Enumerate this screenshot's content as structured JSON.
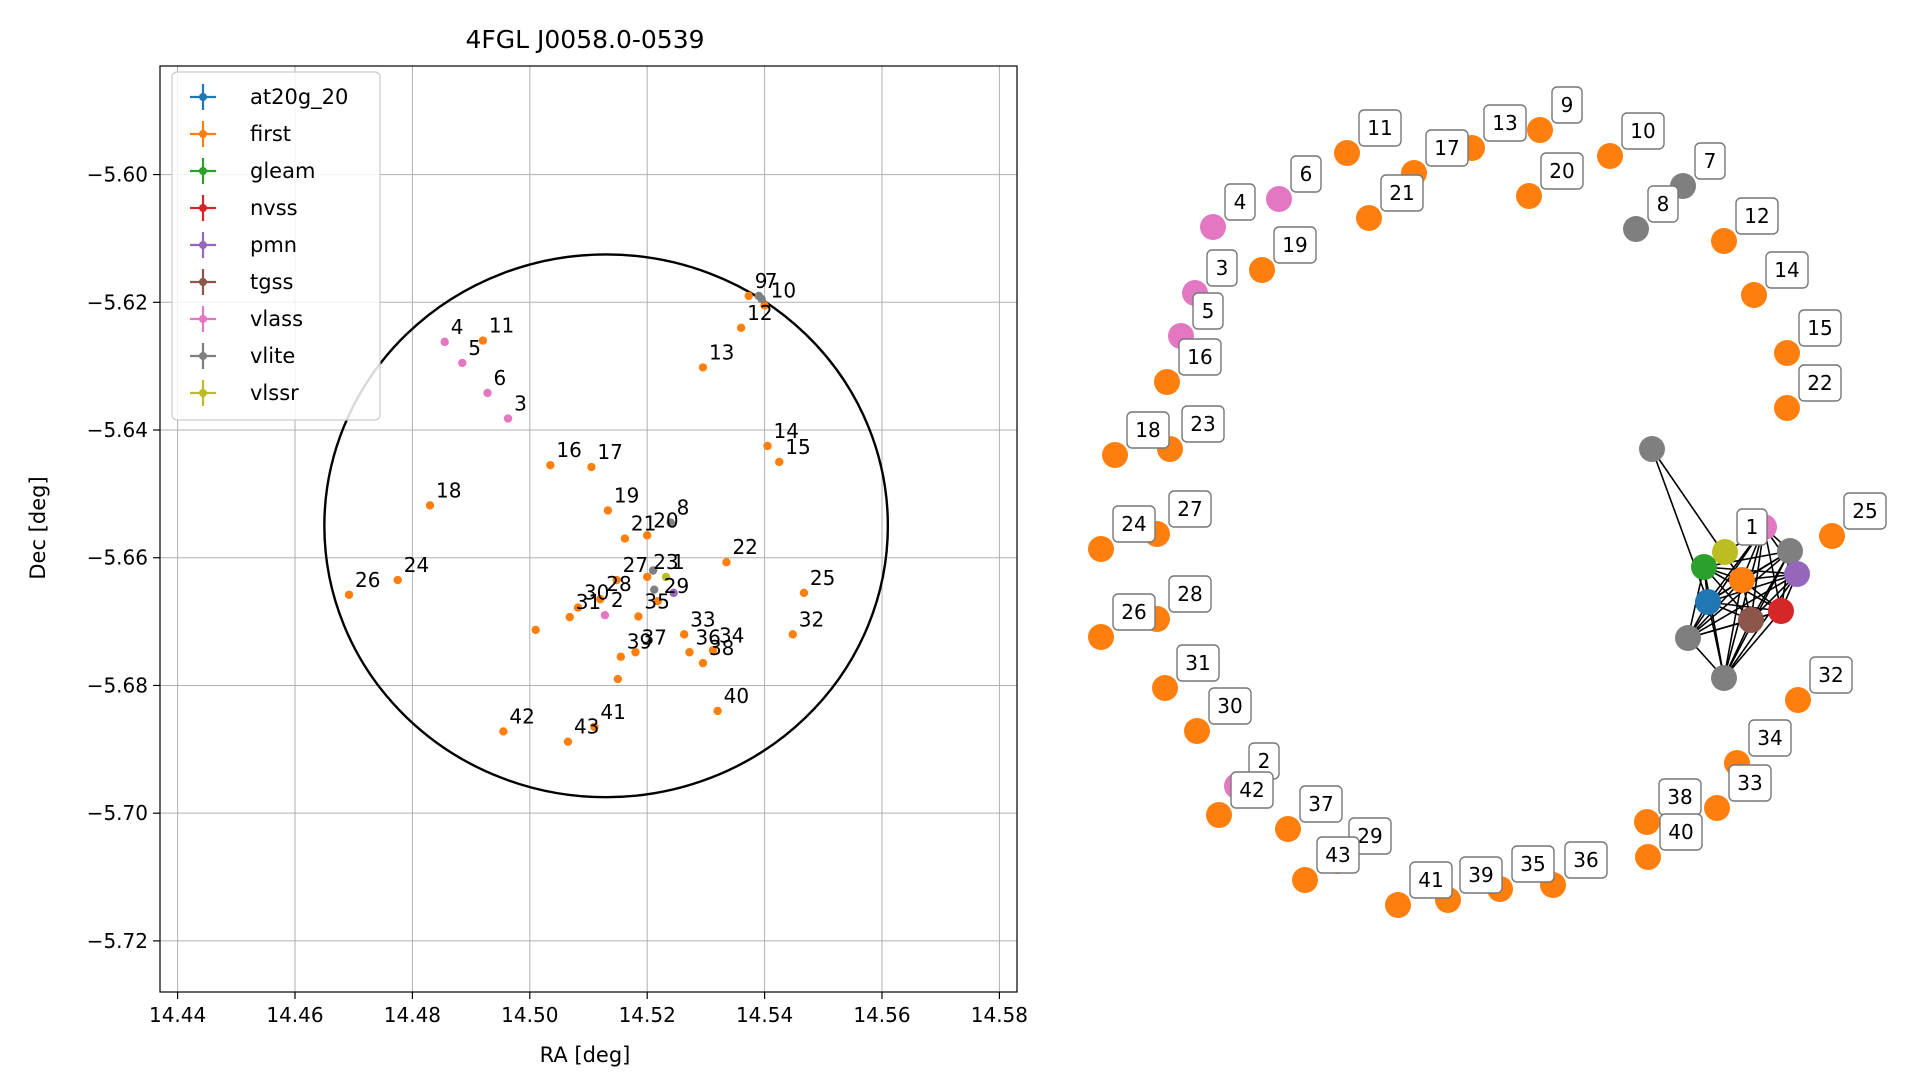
{
  "chart_data": [
    {
      "type": "scatter",
      "title": "4FGL J0058.0-0539",
      "xlabel": "RA [deg]",
      "ylabel": "Dec [deg]",
      "xlim": [
        14.437,
        14.583
      ],
      "ylim": [
        -5.728,
        -5.583
      ],
      "xticks": [
        14.44,
        14.46,
        14.48,
        14.5,
        14.52,
        14.54,
        14.56,
        14.58
      ],
      "xtick_labels": [
        "14.44",
        "14.46",
        "14.48",
        "14.50",
        "14.52",
        "14.54",
        "14.56",
        "14.58"
      ],
      "yticks": [
        -5.6,
        -5.62,
        -5.64,
        -5.66,
        -5.68,
        -5.7,
        -5.72
      ],
      "ytick_labels": [
        "−5.60",
        "−5.62",
        "−5.64",
        "−5.66",
        "−5.68",
        "−5.70",
        "−5.72"
      ],
      "grid": true,
      "legend_position": "top-left",
      "legend": [
        "at20g_20",
        "first",
        "gleam",
        "nvss",
        "pmn",
        "tgss",
        "vlass",
        "vlite",
        "vlssr"
      ],
      "colors": {
        "at20g_20": "#1f77b4",
        "first": "#ff7f0e",
        "gleam": "#2ca02c",
        "nvss": "#d62728",
        "pmn": "#9467bd",
        "tgss": "#8c564b",
        "vlass": "#e377c2",
        "vlite": "#7f7f7f",
        "vlssr": "#bcbd22"
      },
      "circle": {
        "center_ra": 14.513,
        "center_dec": -5.655,
        "radius_ra": 0.048,
        "radius_dec": 0.0425
      },
      "points": [
        {
          "id": "1",
          "survey": "vlssr",
          "ra": 14.5232,
          "dec": -5.663
        },
        {
          "id": "2",
          "survey": "vlass",
          "ra": 14.5128,
          "dec": -5.669
        },
        {
          "id": "3",
          "survey": "vlass",
          "ra": 14.4963,
          "dec": -5.6382
        },
        {
          "id": "4",
          "survey": "vlass",
          "ra": 14.4855,
          "dec": -5.6262
        },
        {
          "id": "5",
          "survey": "vlass",
          "ra": 14.4885,
          "dec": -5.6295
        },
        {
          "id": "6",
          "survey": "vlass",
          "ra": 14.4928,
          "dec": -5.6342
        },
        {
          "id": "7",
          "survey": "vlite",
          "ra": 14.539,
          "dec": -5.619
        },
        {
          "id": "8",
          "survey": "vlite",
          "ra": 14.524,
          "dec": -5.6545
        },
        {
          "id": "9",
          "survey": "first",
          "ra": 14.5373,
          "dec": -5.619
        },
        {
          "id": "10",
          "survey": "first",
          "ra": 14.54,
          "dec": -5.6205
        },
        {
          "id": "11",
          "survey": "first",
          "ra": 14.492,
          "dec": -5.626
        },
        {
          "id": "12",
          "survey": "first",
          "ra": 14.536,
          "dec": -5.624
        },
        {
          "id": "13",
          "survey": "first",
          "ra": 14.5295,
          "dec": -5.6302
        },
        {
          "id": "14",
          "survey": "first",
          "ra": 14.5405,
          "dec": -5.6425
        },
        {
          "id": "15",
          "survey": "first",
          "ra": 14.5425,
          "dec": -5.645
        },
        {
          "id": "16",
          "survey": "first",
          "ra": 14.5035,
          "dec": -5.6455
        },
        {
          "id": "17",
          "survey": "first",
          "ra": 14.5105,
          "dec": -5.6458
        },
        {
          "id": "18",
          "survey": "first",
          "ra": 14.483,
          "dec": -5.6518
        },
        {
          "id": "19",
          "survey": "first",
          "ra": 14.5133,
          "dec": -5.6526
        },
        {
          "id": "20",
          "survey": "first",
          "ra": 14.52,
          "dec": -5.6565
        },
        {
          "id": "21",
          "survey": "first",
          "ra": 14.5162,
          "dec": -5.657
        },
        {
          "id": "22",
          "survey": "first",
          "ra": 14.5335,
          "dec": -5.6607
        },
        {
          "id": "23",
          "survey": "first",
          "ra": 14.52,
          "dec": -5.663
        },
        {
          "id": "24",
          "survey": "first",
          "ra": 14.4775,
          "dec": -5.6635
        },
        {
          "id": "25",
          "survey": "first",
          "ra": 14.5467,
          "dec": -5.6655
        },
        {
          "id": "26",
          "survey": "first",
          "ra": 14.4692,
          "dec": -5.6658
        },
        {
          "id": "27",
          "survey": "first",
          "ra": 14.5148,
          "dec": -5.6635
        },
        {
          "id": "28",
          "survey": "first",
          "ra": 14.512,
          "dec": -5.6665
        },
        {
          "id": "29",
          "survey": "first",
          "ra": 14.5218,
          "dec": -5.6668
        },
        {
          "id": "30",
          "survey": "first",
          "ra": 14.5082,
          "dec": -5.6678
        },
        {
          "id": "31",
          "survey": "first",
          "ra": 14.5068,
          "dec": -5.6693
        },
        {
          "id": "32",
          "survey": "first",
          "ra": 14.5448,
          "dec": -5.672
        },
        {
          "id": "33",
          "survey": "first",
          "ra": 14.5263,
          "dec": -5.672
        },
        {
          "id": "34",
          "survey": "first",
          "ra": 14.5312,
          "dec": -5.6745
        },
        {
          "id": "35",
          "survey": "first",
          "ra": 14.5185,
          "dec": -5.6692
        },
        {
          "id": "36",
          "survey": "first",
          "ra": 14.5272,
          "dec": -5.6748
        },
        {
          "id": "37",
          "survey": "first",
          "ra": 14.518,
          "dec": -5.6748
        },
        {
          "id": "38",
          "survey": "first",
          "ra": 14.5295,
          "dec": -5.6765
        },
        {
          "id": "39",
          "survey": "first",
          "ra": 14.5155,
          "dec": -5.6755
        },
        {
          "id": "40",
          "survey": "first",
          "ra": 14.532,
          "dec": -5.684
        },
        {
          "id": "41",
          "survey": "first",
          "ra": 14.511,
          "dec": -5.6865
        },
        {
          "id": "42",
          "survey": "first",
          "ra": 14.4955,
          "dec": -5.6872
        },
        {
          "id": "43",
          "survey": "first",
          "ra": 14.5065,
          "dec": -5.6888
        },
        {
          "id": "",
          "survey": "first",
          "ra": 14.501,
          "dec": -5.6713
        },
        {
          "id": "",
          "survey": "first",
          "ra": 14.515,
          "dec": -5.679
        },
        {
          "id": "",
          "survey": "vlite",
          "ra": 14.521,
          "dec": -5.662
        },
        {
          "id": "",
          "survey": "vlite",
          "ra": 14.5212,
          "dec": -5.665
        },
        {
          "id": "",
          "survey": "pmn",
          "ra": 14.5245,
          "dec": -5.6655
        },
        {
          "id": "",
          "survey": "vlite",
          "ra": 14.5395,
          "dec": -5.6195
        }
      ]
    },
    {
      "type": "network",
      "colors": {
        "first": "#ff7f0e",
        "vlass": "#e377c2",
        "vlite": "#7f7f7f",
        "vlssr": "#bcbd22",
        "at20g_20": "#1f77b4",
        "gleam": "#2ca02c",
        "nvss": "#d62728",
        "pmn": "#9467bd",
        "tgss": "#8c564b"
      },
      "nodes": [
        {
          "label": "9",
          "survey": "first"
        },
        {
          "label": "13",
          "survey": "first"
        },
        {
          "label": "11",
          "survey": "first"
        },
        {
          "label": "17",
          "survey": "first"
        },
        {
          "label": "10",
          "survey": "first"
        },
        {
          "label": "7",
          "survey": "vlite"
        },
        {
          "label": "6",
          "survey": "vlass"
        },
        {
          "label": "21",
          "survey": "first"
        },
        {
          "label": "20",
          "survey": "first"
        },
        {
          "label": "8",
          "survey": "vlite"
        },
        {
          "label": "4",
          "survey": "vlass"
        },
        {
          "label": "12",
          "survey": "first"
        },
        {
          "label": "19",
          "survey": "first"
        },
        {
          "label": "3",
          "survey": "vlass"
        },
        {
          "label": "14",
          "survey": "first"
        },
        {
          "label": "5",
          "survey": "vlass"
        },
        {
          "label": "15",
          "survey": "first"
        },
        {
          "label": "16",
          "survey": "first"
        },
        {
          "label": "22",
          "survey": "first"
        },
        {
          "label": "18",
          "survey": "first"
        },
        {
          "label": "23",
          "survey": "first"
        },
        {
          "label": "27",
          "survey": "first"
        },
        {
          "label": "25",
          "survey": "first"
        },
        {
          "label": "24",
          "survey": "first"
        },
        {
          "label": "1",
          "survey": "vlssr"
        },
        {
          "label": "28",
          "survey": "first"
        },
        {
          "label": "26",
          "survey": "first"
        },
        {
          "label": "31",
          "survey": "first"
        },
        {
          "label": "32",
          "survey": "first"
        },
        {
          "label": "30",
          "survey": "first"
        },
        {
          "label": "34",
          "survey": "first"
        },
        {
          "label": "2",
          "survey": "vlass"
        },
        {
          "label": "33",
          "survey": "first"
        },
        {
          "label": "42",
          "survey": "first"
        },
        {
          "label": "37",
          "survey": "first"
        },
        {
          "label": "38",
          "survey": "first"
        },
        {
          "label": "29",
          "survey": "first"
        },
        {
          "label": "43",
          "survey": "first"
        },
        {
          "label": "40",
          "survey": "first"
        },
        {
          "label": "41",
          "survey": "first"
        },
        {
          "label": "39",
          "survey": "first"
        },
        {
          "label": "35",
          "survey": "first"
        },
        {
          "label": "36",
          "survey": "first"
        },
        {
          "label": "",
          "survey": "vlite"
        },
        {
          "label": "",
          "survey": "vlass"
        },
        {
          "label": "",
          "survey": "vlite"
        },
        {
          "label": "",
          "survey": "gleam"
        },
        {
          "label": "",
          "survey": "pmn"
        },
        {
          "label": "",
          "survey": "first"
        },
        {
          "label": "",
          "survey": "at20g_20"
        },
        {
          "label": "",
          "survey": "nvss"
        },
        {
          "label": "",
          "survey": "tgss"
        },
        {
          "label": "",
          "survey": "vlite"
        },
        {
          "label": "",
          "survey": "vlite"
        }
      ]
    }
  ]
}
